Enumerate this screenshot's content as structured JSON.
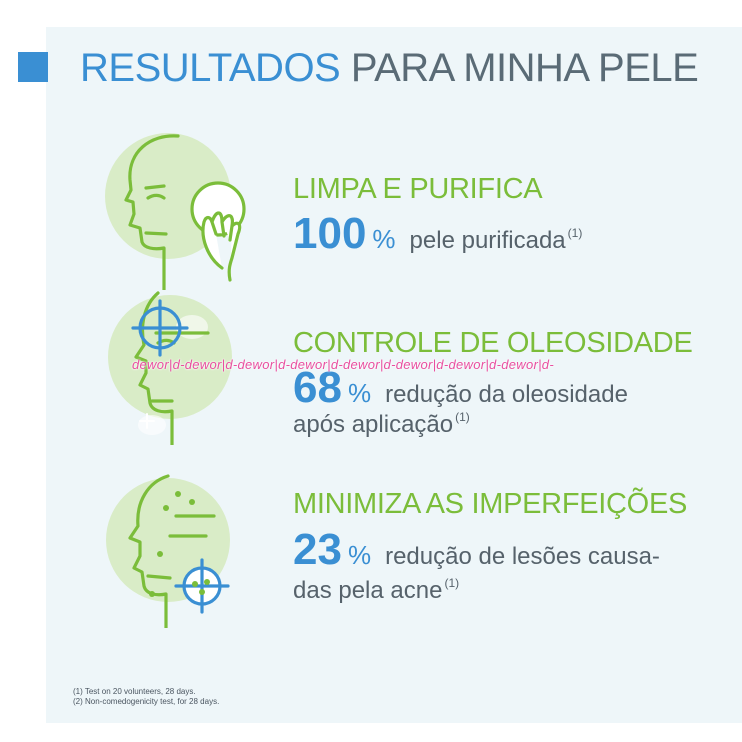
{
  "header": {
    "title_highlight": "RESULTADOS",
    "title_rest": "PARA MINHA PELE"
  },
  "results": [
    {
      "heading": "LIMPA E PURIFICA",
      "value": "100",
      "unit": "%",
      "desc_line1": "pele purificada",
      "desc_line2": "",
      "ref": "(1)",
      "icon": "face-cleansing-pad-icon"
    },
    {
      "heading": "CONTROLE DE OLEOSIDADE",
      "value": "68",
      "unit": "%",
      "desc_line1": "redução da oleosidade",
      "desc_line2": "após aplicação",
      "ref": "(1)",
      "icon": "face-oil-target-icon"
    },
    {
      "heading": "MINIMIZA AS IMPERFEIÇÕES",
      "value": "23",
      "unit": "%",
      "desc_line1": "redução de lesões causa-",
      "desc_line2": "das pela acne",
      "ref": "(1)",
      "icon": "face-acne-target-icon"
    }
  ],
  "watermark": "dewor|d-dewor|d-dewor|d-dewor|d-dewor|d-dewor|d-dewor|d-dewor|d-",
  "footnotes": [
    "(1) Test on 20 volunteers, 28 days.",
    "(2) Non-comedogenicity test, for 28 days."
  ],
  "colors": {
    "blue": "#3a8fd3",
    "green": "#7bbd3a",
    "panel": "#eef6f9",
    "text": "#56626b"
  }
}
